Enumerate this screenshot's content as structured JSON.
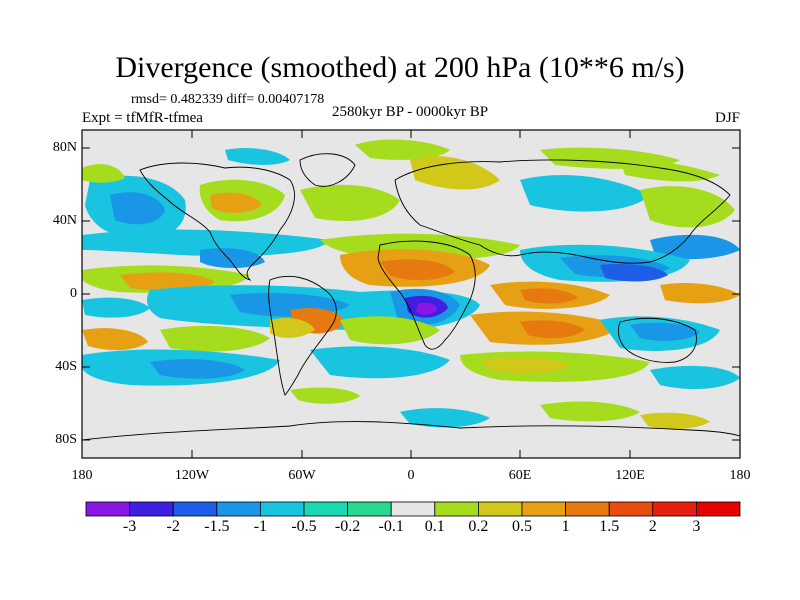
{
  "title": "Divergence (smoothed) at 200 hPa (10**6 m/s)",
  "stats": "rmsd= 0.482339 diff= 0.00407178",
  "expt": "Expt = tfMfR-tfmea",
  "period": "2580kyr BP - 0000kyr BP",
  "season": "DJF",
  "y_labels": [
    "80N",
    "40N",
    "0",
    "40S",
    "80S"
  ],
  "x_labels": [
    "180",
    "120W",
    "60W",
    "0",
    "60E",
    "120E",
    "180"
  ],
  "colorbar": {
    "labels": [
      "-3",
      "-2",
      "-1.5",
      "-1",
      "-0.5",
      "-0.2",
      "-0.1",
      "0.1",
      "0.2",
      "0.5",
      "1",
      "1.5",
      "2",
      "3"
    ],
    "colors": [
      "#8a17e6",
      "#4020e0",
      "#1e5ee6",
      "#1a96e6",
      "#18c4e0",
      "#1ad8b0",
      "#28d890",
      "#e6e6e6",
      "#a6dc1e",
      "#d2c81a",
      "#e6a014",
      "#e67a10",
      "#e64e10",
      "#e62010",
      "#e60000"
    ]
  }
}
